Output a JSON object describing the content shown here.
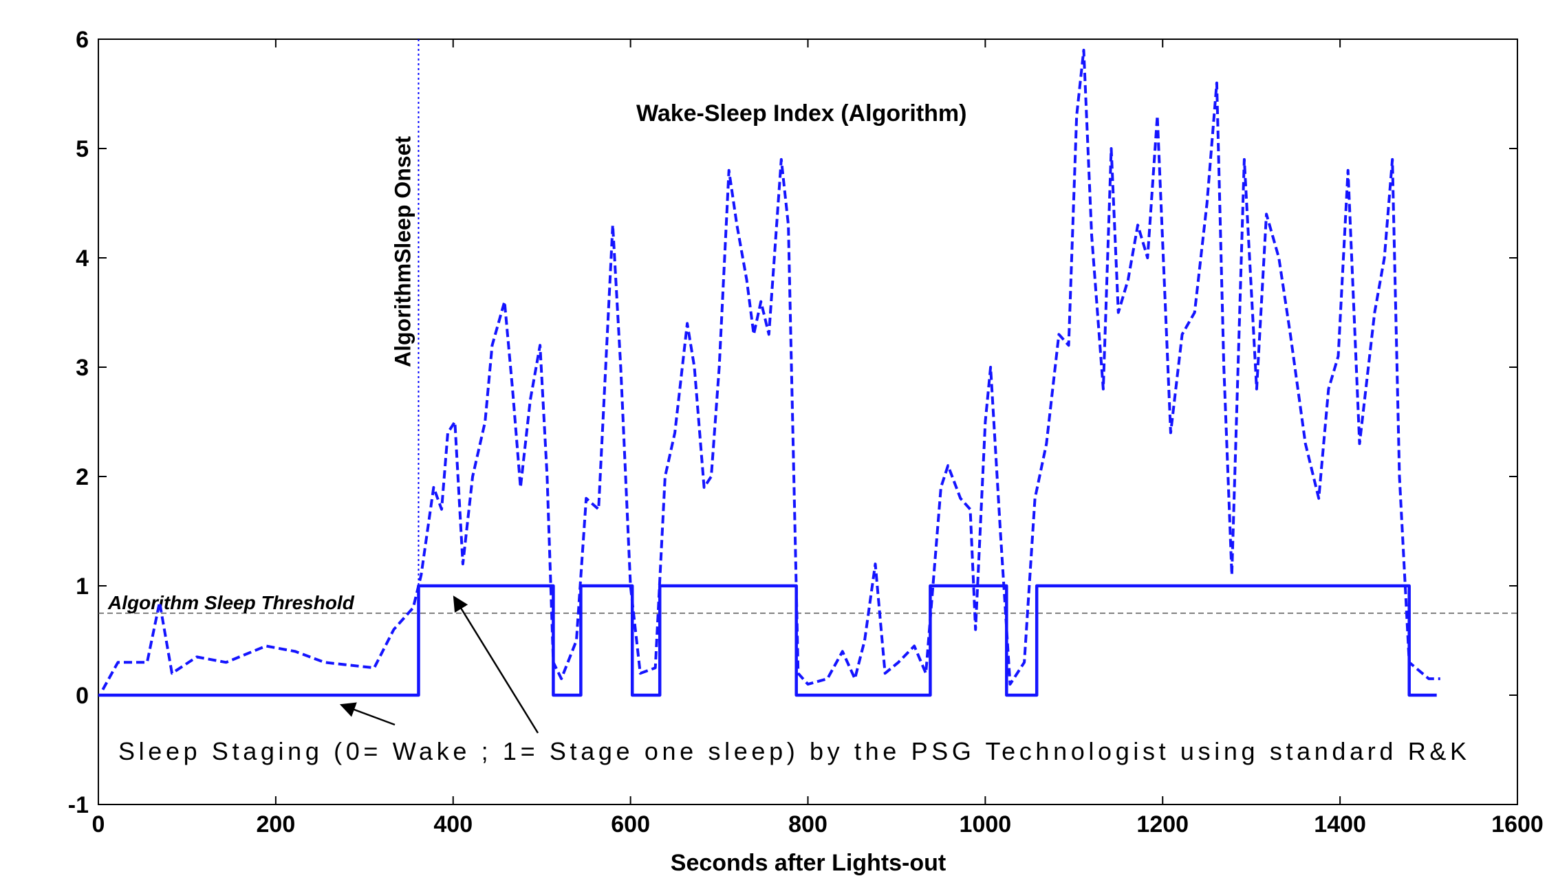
{
  "chart_data": {
    "type": "line",
    "xlabel": "Seconds after Lights-out",
    "xlim": [
      0,
      1600
    ],
    "ylim": [
      -1,
      6
    ],
    "xticks": [
      0,
      200,
      400,
      600,
      800,
      1000,
      1200,
      1400,
      1600
    ],
    "yticks": [
      -1,
      0,
      1,
      2,
      3,
      4,
      5,
      6
    ],
    "threshold": {
      "label": "Algorithm Sleep Threshold",
      "value": 0.75,
      "color": "#555555"
    },
    "onset": {
      "label": "AlgorithmSleep Onset",
      "value": 361,
      "color": "#0000ff"
    },
    "series": [
      {
        "name": "Wake-Sleep Index (Algorithm)",
        "color": "#1414ff",
        "dashed": true,
        "x": [
          5,
          22,
          55,
          69,
          83,
          111,
          144,
          189,
          222,
          255,
          311,
          333,
          355,
          364,
          378,
          387,
          394,
          402,
          411,
          422,
          436,
          444,
          458,
          467,
          476,
          487,
          498,
          506,
          513,
          522,
          539,
          550,
          564,
          572,
          580,
          589,
          600,
          611,
          628,
          639,
          650,
          664,
          672,
          683,
          691,
          700,
          711,
          720,
          731,
          739,
          747,
          756,
          770,
          778,
          789,
          800,
          822,
          839,
          853,
          864,
          876,
          887,
          902,
          920,
          933,
          950,
          958,
          972,
          983,
          989,
          1000,
          1006,
          1017,
          1028,
          1044,
          1056,
          1069,
          1083,
          1094,
          1103,
          1111,
          1120,
          1133,
          1142,
          1150,
          1161,
          1172,
          1183,
          1194,
          1209,
          1222,
          1236,
          1250,
          1261,
          1269,
          1278,
          1292,
          1306,
          1317,
          1331,
          1344,
          1361,
          1376,
          1387,
          1398,
          1409,
          1422,
          1439,
          1450,
          1459,
          1467,
          1478,
          1500,
          1513
        ],
        "values": [
          0.05,
          0.3,
          0.3,
          0.85,
          0.2,
          0.35,
          0.3,
          0.45,
          0.4,
          0.3,
          0.25,
          0.6,
          0.8,
          1.1,
          1.9,
          1.7,
          2.4,
          2.5,
          1.2,
          2.0,
          2.5,
          3.2,
          3.6,
          2.8,
          1.9,
          2.7,
          3.2,
          2.0,
          0.3,
          0.15,
          0.5,
          1.8,
          1.7,
          3.0,
          4.3,
          3.0,
          1.0,
          0.2,
          0.25,
          2.0,
          2.4,
          3.4,
          3.0,
          1.9,
          2.0,
          3.0,
          4.8,
          4.3,
          3.8,
          3.3,
          3.6,
          3.3,
          4.9,
          4.3,
          0.2,
          0.1,
          0.15,
          0.4,
          0.15,
          0.5,
          1.2,
          0.2,
          0.3,
          0.45,
          0.2,
          1.9,
          2.1,
          1.8,
          1.7,
          0.6,
          2.5,
          3.0,
          1.5,
          0.1,
          0.3,
          1.8,
          2.3,
          3.3,
          3.2,
          5.3,
          5.9,
          4.2,
          2.8,
          5.0,
          3.5,
          3.8,
          4.3,
          4.0,
          5.3,
          2.4,
          3.3,
          3.5,
          4.5,
          5.6,
          3.0,
          1.1,
          4.9,
          2.8,
          4.4,
          4.0,
          3.3,
          2.3,
          1.8,
          2.8,
          3.1,
          4.8,
          2.3,
          3.5,
          4.0,
          4.9,
          2.0,
          0.3,
          0.15,
          0.15
        ]
      },
      {
        "name": "Sleep Staging (0= Wake ; 1= Stage one sleep) by the PSG Technologist using standard R&K",
        "color": "#1414ff",
        "dashed": false,
        "x": [
          0,
          361,
          361,
          513,
          513,
          544,
          544,
          602,
          602,
          633,
          633,
          787,
          787,
          938,
          938,
          1024,
          1024,
          1058,
          1058,
          1478,
          1478,
          1509
        ],
        "values": [
          0,
          0,
          1,
          1,
          0,
          0,
          1,
          1,
          0,
          0,
          1,
          1,
          0,
          0,
          1,
          1,
          0,
          0,
          1,
          1,
          0,
          0
        ]
      }
    ]
  }
}
